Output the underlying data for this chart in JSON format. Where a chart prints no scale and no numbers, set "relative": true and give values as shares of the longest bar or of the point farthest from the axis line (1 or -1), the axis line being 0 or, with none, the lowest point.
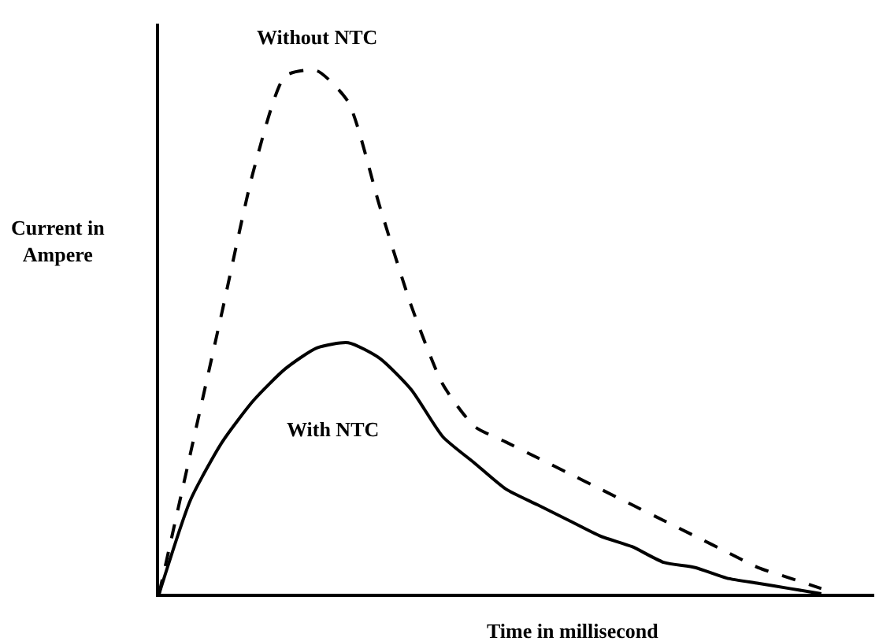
{
  "chart_data": {
    "type": "line",
    "relative": true,
    "xlabel": "Time in millisecond",
    "ylabel": "Current in Ampere",
    "categories": [
      null,
      null,
      null,
      null,
      null,
      null,
      null,
      null,
      null,
      null,
      null,
      null,
      null,
      null,
      null,
      null,
      null,
      null,
      null,
      null,
      null,
      null
    ],
    "series": [
      {
        "name": "Without NTC",
        "color": "#000000",
        "line_style": "dashed",
        "values": [
          0,
          0.27,
          0.54,
          0.81,
          0.99,
          1.0,
          0.94,
          0.74,
          0.55,
          0.4,
          0.32,
          0.29,
          0.26,
          0.23,
          0.2,
          0.17,
          0.14,
          0.11,
          0.08,
          0.05,
          0.03,
          0.01
        ]
      },
      {
        "name": "With NTC",
        "color": "#000000",
        "line_style": "solid",
        "values": [
          0,
          0.18,
          0.29,
          0.37,
          0.43,
          0.47,
          0.48,
          0.45,
          0.39,
          0.3,
          0.25,
          0.2,
          0.17,
          0.14,
          0.11,
          0.09,
          0.06,
          0.05,
          0.03,
          0.02,
          0.01,
          0
        ]
      }
    ],
    "legend": false,
    "marker": "none",
    "tick_labels": false
  }
}
